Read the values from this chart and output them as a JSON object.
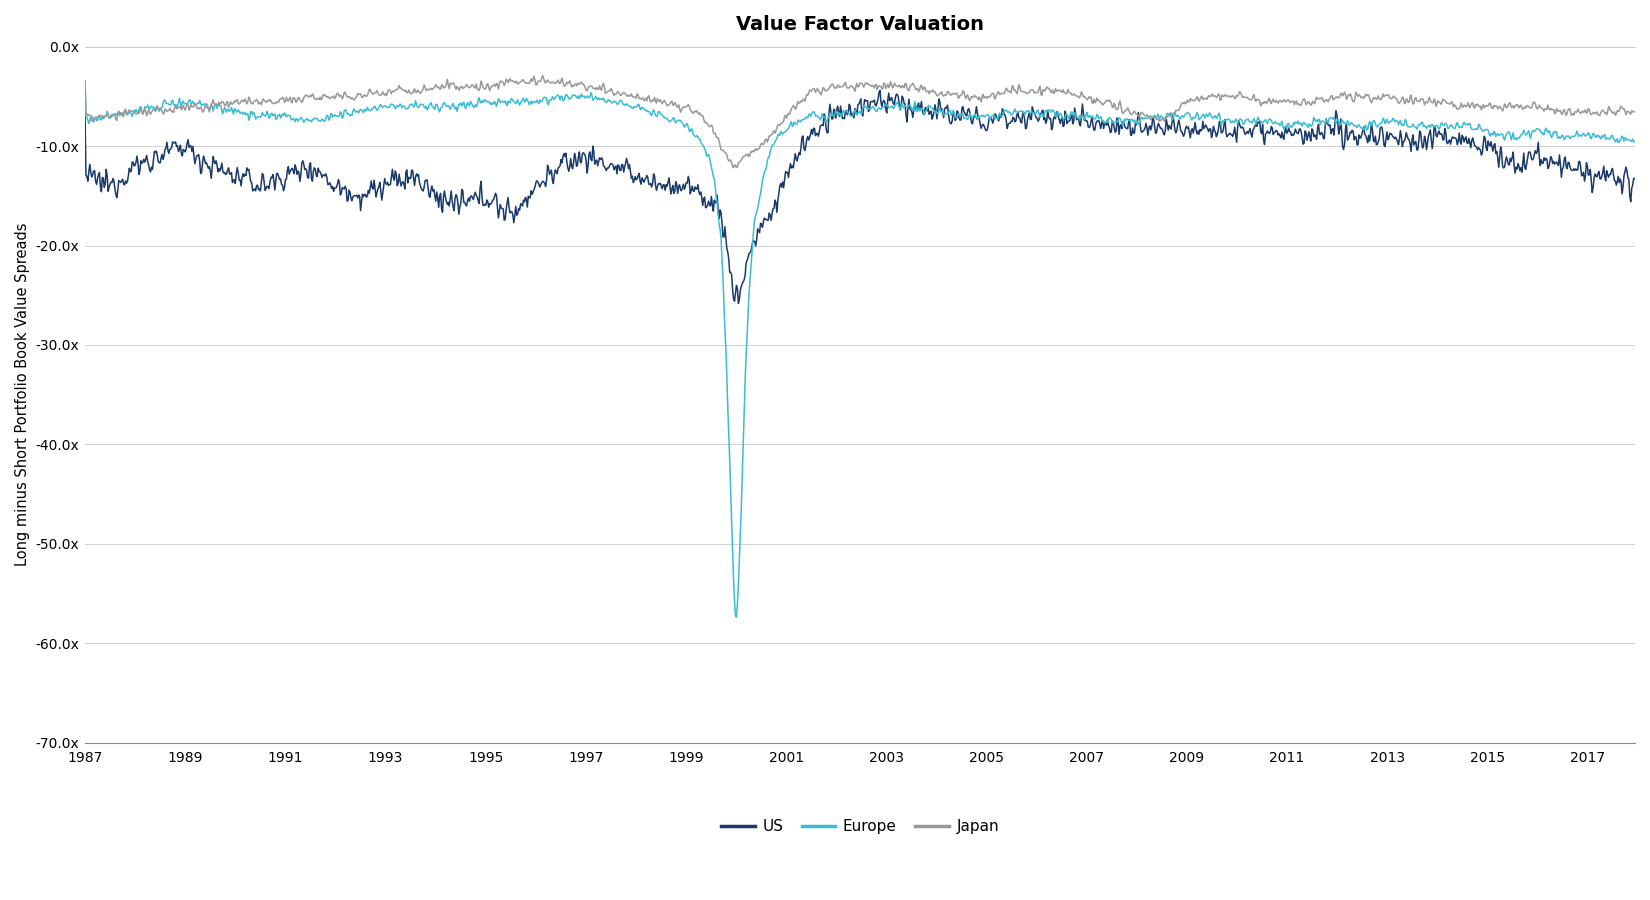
{
  "title": "Value Factor Valuation",
  "ylabel": "Long minus Short Portfolio Book Value Spreads",
  "ylim": [
    -70.0,
    0.0
  ],
  "yticks": [
    0.0,
    -10.0,
    -20.0,
    -30.0,
    -40.0,
    -50.0,
    -60.0,
    -70.0
  ],
  "xlim": [
    1987.0,
    2017.95
  ],
  "xticks": [
    1987,
    1989,
    1991,
    1993,
    1995,
    1997,
    1999,
    2001,
    2003,
    2005,
    2007,
    2009,
    2011,
    2013,
    2015,
    2017
  ],
  "colors": {
    "US": "#1a3a6b",
    "Europe": "#3bbcd4",
    "Japan": "#999999"
  },
  "legend_labels": [
    "US",
    "Europe",
    "Japan"
  ],
  "background_color": "#ffffff",
  "title_fontsize": 14,
  "label_fontsize": 10.5,
  "tick_fontsize": 10
}
